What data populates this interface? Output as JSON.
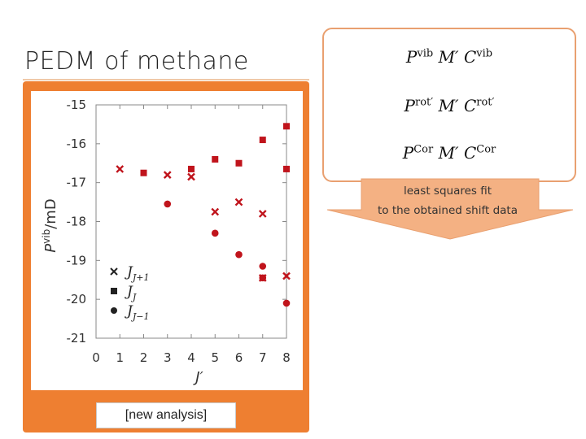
{
  "slide": {
    "title": "PEDM of methane",
    "new_analysis_label": "[new analysis]"
  },
  "formulas": {
    "line1": {
      "P": "P",
      "P_sup": "vib",
      "M": "M′",
      "C": "C",
      "C_sup": "vib"
    },
    "line2": {
      "P": "P",
      "P_sup": "rot′",
      "M": "M′",
      "C": "C",
      "C_sup": "rot′"
    },
    "line3": {
      "P": "P",
      "P_sup": "Cor",
      "M": "M′",
      "C": "C",
      "C_sup": "Cor"
    }
  },
  "arrow": {
    "line1": "least squares fit",
    "line2": "to the obtained shift data"
  },
  "colors": {
    "frame": "#ee7f31",
    "series": "#c0141c",
    "arrow_fill": "#f4b183",
    "formula_border": "#e9a070"
  },
  "chart_data": {
    "type": "scatter",
    "xlabel": "J′",
    "ylabel_main": "P",
    "ylabel_sup": "vib",
    "ylabel_unit": "/mD",
    "xlim": [
      0,
      8
    ],
    "ylim": [
      -21,
      -15
    ],
    "xticks": [
      "0",
      "1",
      "2",
      "3",
      "4",
      "5",
      "6",
      "7",
      "8"
    ],
    "yticks": [
      "-15",
      "-16",
      "-17",
      "-18",
      "-19",
      "-20",
      "-21"
    ],
    "grid": false,
    "legend_position": "bottom-left",
    "series": [
      {
        "name": "J_{J+1}",
        "legend_main": "J",
        "legend_sub": "J+1",
        "marker": "x",
        "points": [
          [
            1,
            -16.65
          ],
          [
            3,
            -16.8
          ],
          [
            4,
            -16.85
          ],
          [
            5,
            -17.75
          ],
          [
            6,
            -17.5
          ],
          [
            7,
            -17.8
          ],
          [
            7,
            -19.45
          ],
          [
            8,
            -19.4
          ]
        ]
      },
      {
        "name": "J_J",
        "legend_main": "J",
        "legend_sub": "J",
        "marker": "square",
        "points": [
          [
            2,
            -16.75
          ],
          [
            4,
            -16.65
          ],
          [
            5,
            -16.4
          ],
          [
            6,
            -16.5
          ],
          [
            7,
            -15.9
          ],
          [
            8,
            -15.55
          ],
          [
            8,
            -16.65
          ]
        ]
      },
      {
        "name": "J_{J-1}",
        "legend_main": "J",
        "legend_sub": "J−1",
        "marker": "circle",
        "points": [
          [
            3,
            -17.55
          ],
          [
            5,
            -18.3
          ],
          [
            6,
            -18.85
          ],
          [
            7,
            -19.15
          ],
          [
            7,
            -19.45
          ],
          [
            8,
            -20.1
          ]
        ]
      }
    ]
  }
}
